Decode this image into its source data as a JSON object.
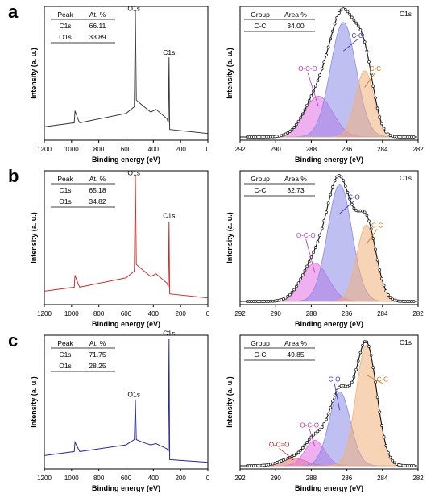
{
  "panels": [
    {
      "letter": "a",
      "survey": {
        "xlabel": "Binding energy (eV)",
        "ylabel": "Intensity (a. u.)",
        "xticks": [
          "1200",
          "1000",
          "800",
          "600",
          "400",
          "200",
          "0"
        ],
        "color": "#3a3a3a",
        "table": {
          "headers": [
            "Peak",
            "At. %"
          ],
          "rows": [
            [
              "C1s",
              "66.11"
            ],
            [
              "O1s",
              "33.89"
            ]
          ]
        },
        "peak_labels": [
          {
            "text": "O1s",
            "x": 531,
            "y": 0.95
          },
          {
            "text": "C1s",
            "x": 285,
            "y": 0.62
          }
        ],
        "chart_data": {
          "type": "line",
          "x": [
            1200,
            980,
            975,
            950,
            940,
            600,
            540,
            532,
            525,
            480,
            420,
            380,
            300,
            290,
            285,
            280,
            0
          ],
          "y": [
            0.1,
            0.13,
            0.22,
            0.15,
            0.13,
            0.2,
            0.25,
            0.97,
            0.3,
            0.26,
            0.21,
            0.23,
            0.16,
            0.13,
            0.62,
            0.08,
            0.05
          ]
        }
      },
      "c1s": {
        "title": "C1s",
        "xlabel": "Binding energy (eV)",
        "ylabel": "Intensity (a. u.)",
        "xticks": [
          "292",
          "290",
          "288",
          "286",
          "284",
          "282"
        ],
        "table": {
          "headers": [
            "Group",
            "Area %"
          ],
          "rows": [
            [
              "C-C",
              "34.00"
            ]
          ]
        },
        "peaks": [
          {
            "label": "O-C-O",
            "center": 287.6,
            "height": 0.32,
            "width": 0.8,
            "color": "#e070e0",
            "label_color": "#c030c0",
            "label_x": 288.2,
            "label_y": 0.52
          },
          {
            "label": "C-O",
            "center": 286.2,
            "height": 0.9,
            "width": 0.72,
            "color": "#8a8ae8",
            "label_color": "#3030b0",
            "label_x": 285.4,
            "label_y": 0.78
          },
          {
            "label": "C-C",
            "center": 285.0,
            "height": 0.52,
            "width": 0.52,
            "color": "#f0b07a",
            "label_color": "#d07010",
            "label_x": 284.4,
            "label_y": 0.52
          }
        ]
      }
    },
    {
      "letter": "b",
      "survey": {
        "xlabel": "Binding energy (eV)",
        "ylabel": "Intensity (a. u.)",
        "xticks": [
          "1200",
          "1000",
          "800",
          "600",
          "400",
          "200",
          "0"
        ],
        "color": "#c83030",
        "table": {
          "headers": [
            "Peak",
            "At. %"
          ],
          "rows": [
            [
              "C1s",
              "65.18"
            ],
            [
              "O1s",
              "34.82"
            ]
          ]
        },
        "peak_labels": [
          {
            "text": "O1s",
            "x": 531,
            "y": 0.95
          },
          {
            "text": "C1s",
            "x": 285,
            "y": 0.63
          }
        ],
        "chart_data": {
          "type": "line",
          "x": [
            1200,
            980,
            975,
            950,
            940,
            600,
            540,
            532,
            525,
            480,
            420,
            380,
            300,
            290,
            285,
            280,
            0
          ],
          "y": [
            0.1,
            0.13,
            0.22,
            0.15,
            0.13,
            0.2,
            0.25,
            0.97,
            0.3,
            0.26,
            0.21,
            0.23,
            0.16,
            0.13,
            0.62,
            0.08,
            0.05
          ]
        }
      },
      "c1s": {
        "title": "C1s",
        "xlabel": "Binding energy (eV)",
        "ylabel": "Intensity (a. u.)",
        "xticks": [
          "292",
          "290",
          "288",
          "286",
          "284",
          "282"
        ],
        "table": {
          "headers": [
            "Group",
            "Area %"
          ],
          "rows": [
            [
              "C-C",
              "32.73"
            ]
          ]
        },
        "peaks": [
          {
            "label": "O-C-O",
            "center": 287.8,
            "height": 0.3,
            "width": 0.75,
            "color": "#e070e0",
            "label_color": "#c030c0",
            "label_x": 288.3,
            "label_y": 0.5
          },
          {
            "label": "C-O",
            "center": 286.4,
            "height": 0.92,
            "width": 0.68,
            "color": "#8a8ae8",
            "label_color": "#3030b0",
            "label_x": 285.6,
            "label_y": 0.8
          },
          {
            "label": "C-C",
            "center": 284.9,
            "height": 0.6,
            "width": 0.55,
            "color": "#f0b07a",
            "label_color": "#d07010",
            "label_x": 284.3,
            "label_y": 0.58
          }
        ]
      }
    },
    {
      "letter": "c",
      "survey": {
        "xlabel": "Binding energy (eV)",
        "ylabel": "Intensity (a. u.)",
        "xticks": [
          "1200",
          "1000",
          "800",
          "600",
          "400",
          "200",
          "0"
        ],
        "color": "#2b2b9a",
        "table": {
          "headers": [
            "Peak",
            "At. %"
          ],
          "rows": [
            [
              "C1s",
              "71.75"
            ],
            [
              "O1s",
              "28.25"
            ]
          ]
        },
        "peak_labels": [
          {
            "text": "O1s",
            "x": 531,
            "y": 0.52
          },
          {
            "text": "C1s",
            "x": 285,
            "y": 0.98
          }
        ],
        "chart_data": {
          "type": "line",
          "x": [
            1200,
            980,
            975,
            950,
            940,
            600,
            540,
            532,
            525,
            480,
            420,
            380,
            300,
            290,
            285,
            280,
            0
          ],
          "y": [
            0.1,
            0.13,
            0.2,
            0.15,
            0.13,
            0.18,
            0.22,
            0.52,
            0.22,
            0.2,
            0.18,
            0.19,
            0.15,
            0.13,
            0.97,
            0.07,
            0.05
          ]
        }
      },
      "c1s": {
        "title": "C1s",
        "xlabel": "Binding energy (eV)",
        "ylabel": "Intensity (a. u.)",
        "xticks": [
          "292",
          "290",
          "288",
          "286",
          "284",
          "282"
        ],
        "table": {
          "headers": [
            "Group",
            "Area %"
          ],
          "rows": [
            [
              "C-C",
              "49.85"
            ]
          ]
        },
        "peaks": [
          {
            "label": "O-C=O",
            "center": 289.0,
            "height": 0.06,
            "width": 0.7,
            "color": "#e07070",
            "label_color": "#c02020",
            "label_x": 289.8,
            "label_y": 0.15
          },
          {
            "label": "O-C-O",
            "center": 287.8,
            "height": 0.2,
            "width": 0.55,
            "color": "#e070e0",
            "label_color": "#c030c0",
            "label_x": 288.1,
            "label_y": 0.3
          },
          {
            "label": "C-O",
            "center": 286.4,
            "height": 0.58,
            "width": 0.6,
            "color": "#8a8ae8",
            "label_color": "#3030b0",
            "label_x": 286.7,
            "label_y": 0.66
          },
          {
            "label": "C-C",
            "center": 284.9,
            "height": 0.95,
            "width": 0.58,
            "color": "#f0b07a",
            "label_color": "#d07010",
            "label_x": 284.0,
            "label_y": 0.66
          }
        ]
      }
    }
  ]
}
